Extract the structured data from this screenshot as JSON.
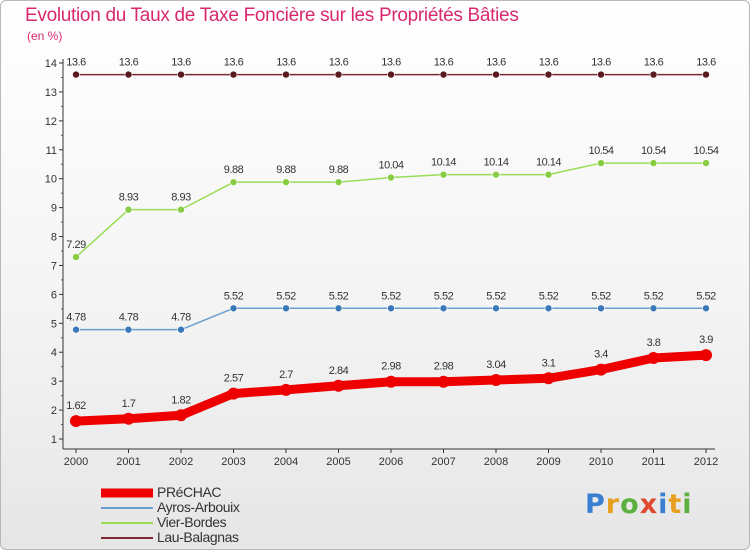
{
  "chart_data": {
    "type": "line",
    "title": "Evolution du Taux de Taxe Foncière sur les Propriétés Bâties",
    "subtitle": "(en %)",
    "xlabel": "",
    "ylabel": "",
    "ylim": [
      1,
      14
    ],
    "yticks": [
      "1",
      "2",
      "3",
      "4",
      "5",
      "6",
      "7",
      "8",
      "9",
      "10",
      "11",
      "12",
      "13",
      "14"
    ],
    "categories": [
      "2000",
      "2001",
      "2002",
      "2003",
      "2004",
      "2005",
      "2006",
      "2007",
      "2008",
      "2009",
      "2010",
      "2011",
      "2012"
    ],
    "series": [
      {
        "name": "Lau-Balagnas",
        "color": "#7a2b30",
        "marker": "#5a1a1f",
        "weight": "thin",
        "values": [
          13.6,
          13.6,
          13.6,
          13.6,
          13.6,
          13.6,
          13.6,
          13.6,
          13.6,
          13.6,
          13.6,
          13.6,
          13.6
        ],
        "labels": [
          "13.6",
          "13.6",
          "13.6",
          "13.6",
          "13.6",
          "13.6",
          "13.6",
          "13.6",
          "13.6",
          "13.6",
          "13.6",
          "13.6",
          "13.6"
        ]
      },
      {
        "name": "Vier-Bordes",
        "color": "#99dd55",
        "marker": "#88cc44",
        "weight": "thin",
        "values": [
          7.29,
          8.93,
          8.93,
          9.88,
          9.88,
          9.88,
          10.04,
          10.14,
          10.14,
          10.14,
          10.54,
          10.54,
          10.54
        ],
        "labels": [
          "7.29",
          "8.93",
          "8.93",
          "9.88",
          "9.88",
          "9.88",
          "10.04",
          "10.14",
          "10.14",
          "10.14",
          "10.54",
          "10.54",
          "10.54"
        ]
      },
      {
        "name": "Ayros-Arbouix",
        "color": "#6a9ed0",
        "marker": "#3a78b8",
        "weight": "thin",
        "values": [
          4.78,
          4.78,
          4.78,
          5.52,
          5.52,
          5.52,
          5.52,
          5.52,
          5.52,
          5.52,
          5.52,
          5.52,
          5.52
        ],
        "labels": [
          "4.78",
          "4.78",
          "4.78",
          "5.52",
          "5.52",
          "5.52",
          "5.52",
          "5.52",
          "5.52",
          "5.52",
          "5.52",
          "5.52",
          "5.52"
        ]
      },
      {
        "name": "PRéCHAC",
        "color": "#ee0000",
        "marker": "#ee0000",
        "weight": "thick",
        "values": [
          1.62,
          1.7,
          1.82,
          2.57,
          2.7,
          2.84,
          2.98,
          2.98,
          3.04,
          3.1,
          3.4,
          3.8,
          3.9
        ],
        "labels": [
          "1.62",
          "1.7",
          "1.82",
          "2.57",
          "2.7",
          "2.84",
          "2.98",
          "2.98",
          "3.04",
          "3.1",
          "3.4",
          "3.8",
          "3.9"
        ]
      }
    ]
  },
  "legend": [
    {
      "name": "PRéCHAC",
      "color": "#ee0000",
      "thick": true
    },
    {
      "name": "Ayros-Arbouix",
      "color": "#6a9ed0",
      "thick": false
    },
    {
      "name": "Vier-Bordes",
      "color": "#99dd55",
      "thick": false
    },
    {
      "name": "Lau-Balagnas",
      "color": "#7a2b30",
      "thick": false
    }
  ],
  "logo": {
    "letters": [
      "P",
      "r",
      "o",
      "x",
      "i",
      "t",
      "i"
    ],
    "colors": [
      "#3a7fd0",
      "#e8a020",
      "#5cb040",
      "#e04a30",
      "#3a7fd0",
      "#e8a020",
      "#5cb040"
    ]
  }
}
